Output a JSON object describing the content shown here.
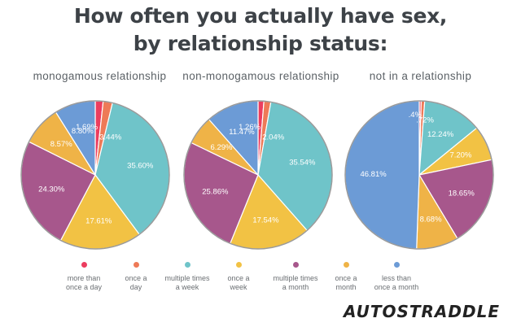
{
  "title_line1": "How often you actually have sex,",
  "title_line2": "by relationship status:",
  "colors": {
    "more_than_once_a_day": "#ec3d5f",
    "once_a_day": "#ee7a57",
    "multiple_times_a_week": "#6fc4c9",
    "once_a_week": "#f2c244",
    "multiple_times_a_month": "#a7578c",
    "once_a_month": "#efb347",
    "less_than_once_a_month": "#6c9bd6"
  },
  "legend": [
    {
      "key": "more_than_once_a_day",
      "label": "more than\nonce a day"
    },
    {
      "key": "once_a_day",
      "label": "once a\nday"
    },
    {
      "key": "multiple_times_a_week",
      "label": "multiple times\na week"
    },
    {
      "key": "once_a_week",
      "label": "once a\nweek"
    },
    {
      "key": "multiple_times_a_month",
      "label": "multiple times\na month"
    },
    {
      "key": "once_a_month",
      "label": "once a\nmonth"
    },
    {
      "key": "less_than_once_a_month",
      "label": "less than\nonce a month"
    }
  ],
  "chart_data": [
    {
      "type": "pie",
      "title": "monogamous relationship",
      "slices": [
        {
          "key": "more_than_once_a_day",
          "value": 1.69,
          "label": "1.69%"
        },
        {
          "key": "once_a_day",
          "value": 2.0,
          "label": ""
        },
        {
          "key": "multiple_times_a_week",
          "value": 35.6,
          "label": "35.60%"
        },
        {
          "key": "once_a_week",
          "value": 17.61,
          "label": "17.61%"
        },
        {
          "key": "multiple_times_a_month",
          "value": 24.3,
          "label": "24.30%"
        },
        {
          "key": "once_a_month",
          "value": 8.57,
          "label": "8.57%"
        },
        {
          "key": "less_than_once_a_month",
          "value": 8.8,
          "label": "8.80%"
        }
      ],
      "extra_labels": [
        "3.44%"
      ]
    },
    {
      "type": "pie",
      "title": "non-monogamous relationship",
      "slices": [
        {
          "key": "more_than_once_a_day",
          "value": 1.26,
          "label": "1.26%"
        },
        {
          "key": "once_a_day",
          "value": 1.5,
          "label": ""
        },
        {
          "key": "multiple_times_a_week",
          "value": 35.54,
          "label": "35.54%"
        },
        {
          "key": "once_a_week",
          "value": 17.54,
          "label": "17.54%"
        },
        {
          "key": "multiple_times_a_month",
          "value": 25.86,
          "label": "25.86%"
        },
        {
          "key": "once_a_month",
          "value": 6.29,
          "label": "6.29%"
        },
        {
          "key": "less_than_once_a_month",
          "value": 11.47,
          "label": "11.47%"
        }
      ],
      "extra_labels": [
        "2.04%"
      ]
    },
    {
      "type": "pie",
      "title": "not in a relationship",
      "slices": [
        {
          "key": "more_than_once_a_day",
          "value": 0.4,
          "label": ".4%"
        },
        {
          "key": "once_a_day",
          "value": 0.72,
          "label": ".72%"
        },
        {
          "key": "multiple_times_a_week",
          "value": 12.24,
          "label": "12.24%"
        },
        {
          "key": "once_a_week",
          "value": 7.2,
          "label": "7.20%"
        },
        {
          "key": "multiple_times_a_month",
          "value": 18.65,
          "label": "18.65%"
        },
        {
          "key": "once_a_month",
          "value": 8.68,
          "label": "8.68%"
        },
        {
          "key": "less_than_once_a_month",
          "value": 46.81,
          "label": "46.81%"
        }
      ],
      "extra_labels": []
    }
  ],
  "logo_text": "AUTOSTRADDLE"
}
